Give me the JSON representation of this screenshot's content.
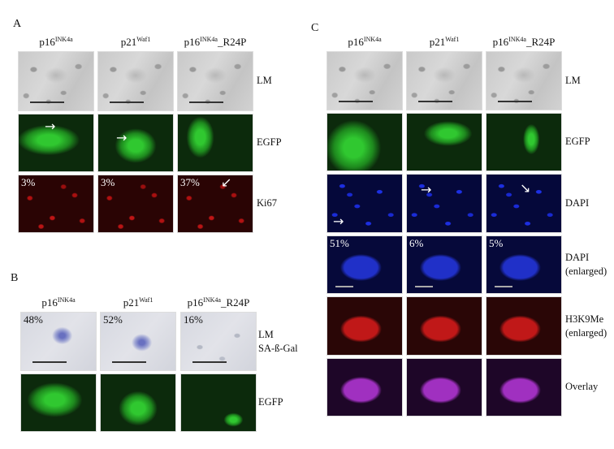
{
  "panels": {
    "A": {
      "label": "A",
      "columns": [
        {
          "base": "p16",
          "sup": "INK4a",
          "suffix": ""
        },
        {
          "base": "p21",
          "sup": "Waf1",
          "suffix": ""
        },
        {
          "base": "p16",
          "sup": "INK4a",
          "suffix": "_R24P"
        }
      ],
      "rows": [
        {
          "label": "LM",
          "label2": "",
          "type": "lm",
          "percentages": [
            "",
            "",
            ""
          ]
        },
        {
          "label": "EGFP",
          "label2": "",
          "type": "egfp",
          "percentages": [
            "",
            "",
            ""
          ]
        },
        {
          "label": "Ki67",
          "label2": "",
          "type": "ki67",
          "percentages": [
            "3%",
            "3%",
            "37%"
          ]
        }
      ]
    },
    "B": {
      "label": "B",
      "columns": [
        {
          "base": "p16",
          "sup": "INK4a",
          "suffix": ""
        },
        {
          "base": "p21",
          "sup": "Waf1",
          "suffix": ""
        },
        {
          "base": "p16",
          "sup": "INK4a",
          "suffix": "_R24P"
        }
      ],
      "rows": [
        {
          "label": "LM",
          "label2": "SA-ß-Gal",
          "type": "sa-gal",
          "percentages": [
            "48%",
            "52%",
            "16%"
          ]
        },
        {
          "label": "EGFP",
          "label2": "",
          "type": "egfp",
          "percentages": [
            "",
            "",
            ""
          ]
        }
      ]
    },
    "C": {
      "label": "C",
      "columns": [
        {
          "base": "p16",
          "sup": "INK4a",
          "suffix": ""
        },
        {
          "base": "p21",
          "sup": "Waf1",
          "suffix": ""
        },
        {
          "base": "p16",
          "sup": "INK4a",
          "suffix": "_R24P"
        }
      ],
      "rows": [
        {
          "label": "LM",
          "label2": "",
          "type": "lm",
          "percentages": [
            "",
            "",
            ""
          ]
        },
        {
          "label": "EGFP",
          "label2": "",
          "type": "egfp",
          "percentages": [
            "",
            "",
            ""
          ]
        },
        {
          "label": "DAPI",
          "label2": "",
          "type": "dapi",
          "percentages": [
            "",
            "",
            ""
          ]
        },
        {
          "label": "DAPI",
          "label2": "(enlarged)",
          "type": "dapi-enlarged",
          "percentages": [
            "51%",
            "6%",
            "5%"
          ]
        },
        {
          "label": "H3K9Me",
          "label2": "(enlarged)",
          "type": "h3k9me-enlarged",
          "percentages": [
            "",
            "",
            ""
          ]
        },
        {
          "label": "Overlay",
          "label2": "",
          "type": "overlay",
          "percentages": [
            "",
            "",
            ""
          ]
        }
      ]
    }
  },
  "colors": {
    "egfp": "#20c020",
    "ki67": "#e01818",
    "dapi": "#2030e0",
    "overlay": "#b030d0"
  }
}
